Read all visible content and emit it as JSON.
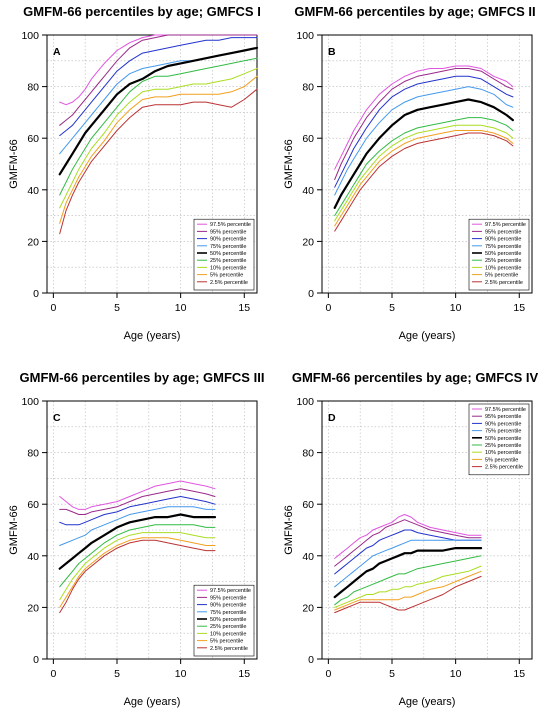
{
  "chart_data": [
    {
      "type": "line",
      "title": "GMFM-66 percentiles by age; GMFCS I",
      "panel": "A",
      "xlabel": "Age (years)",
      "ylabel": "GMFM-66",
      "xlim": [
        -0.5,
        16
      ],
      "ylim": [
        0,
        100
      ],
      "xticks": [
        "0",
        "5",
        "10",
        "15"
      ],
      "yticks": [
        "0",
        "20",
        "40",
        "60",
        "80",
        "100"
      ],
      "grid": true,
      "legend_position": "bottom-right",
      "x": [
        0.5,
        1,
        1.5,
        2,
        2.5,
        3,
        3.5,
        4,
        5,
        6,
        7,
        8,
        9,
        10,
        11,
        12,
        13,
        14,
        15,
        16
      ],
      "series": [
        {
          "name": "97.5% percentile",
          "color": "#e055e0",
          "width": 1,
          "values": [
            74,
            73,
            74,
            76,
            79,
            83,
            86,
            89,
            94,
            97,
            99,
            100,
            100,
            100,
            100,
            100,
            100,
            100,
            100,
            100
          ]
        },
        {
          "name": "95% percentile",
          "color": "#9a2a8a",
          "width": 1,
          "values": [
            65,
            67,
            69,
            72,
            75,
            78,
            81,
            84,
            90,
            95,
            98,
            99,
            100,
            100,
            100,
            100,
            100,
            100,
            100,
            100
          ]
        },
        {
          "name": "90% percentile",
          "color": "#2233cc",
          "width": 1,
          "values": [
            61,
            63,
            65,
            68,
            71,
            74,
            77,
            80,
            86,
            90,
            93,
            94,
            95,
            96,
            97,
            98,
            98,
            99,
            99,
            99
          ]
        },
        {
          "name": "75% percentile",
          "color": "#4499ee",
          "width": 1,
          "values": [
            54,
            57,
            60,
            63,
            66,
            69,
            72,
            75,
            81,
            85,
            87,
            88,
            89,
            90,
            90,
            91,
            92,
            93,
            94,
            95
          ]
        },
        {
          "name": "50% percentile",
          "color": "#000000",
          "width": 2.2,
          "values": [
            46,
            50,
            54,
            58,
            62,
            65,
            68,
            71,
            77,
            81,
            83,
            86,
            88,
            89,
            90,
            91,
            92,
            93,
            94,
            95
          ]
        },
        {
          "name": "25% percentile",
          "color": "#33bb44",
          "width": 1,
          "values": [
            38,
            43,
            48,
            52,
            56,
            60,
            63,
            66,
            72,
            78,
            82,
            84,
            84,
            85,
            86,
            87,
            88,
            89,
            90,
            91
          ]
        },
        {
          "name": "10% percentile",
          "color": "#aadd22",
          "width": 1,
          "values": [
            33,
            38,
            43,
            48,
            52,
            56,
            59,
            62,
            69,
            74,
            78,
            79,
            79,
            80,
            81,
            81,
            82,
            83,
            85,
            87
          ]
        },
        {
          "name": "5% percentile",
          "color": "#f2a020",
          "width": 1,
          "values": [
            27,
            35,
            40,
            45,
            49,
            53,
            56,
            59,
            66,
            71,
            75,
            76,
            76,
            77,
            77,
            77,
            77,
            78,
            80,
            84
          ]
        },
        {
          "name": "2.5% percentile",
          "color": "#bb3333",
          "width": 1,
          "values": [
            23,
            32,
            38,
            43,
            47,
            51,
            54,
            57,
            63,
            68,
            72,
            73,
            73,
            73,
            74,
            74,
            73,
            72,
            75,
            79
          ]
        }
      ]
    },
    {
      "type": "line",
      "title": "GMFM-66 percentiles by age; GMFCS II",
      "panel": "B",
      "xlabel": "Age (years)",
      "ylabel": "GMFM-66",
      "xlim": [
        -0.5,
        16
      ],
      "ylim": [
        0,
        100
      ],
      "xticks": [
        "0",
        "5",
        "10",
        "15"
      ],
      "yticks": [
        "0",
        "20",
        "40",
        "60",
        "80",
        "100"
      ],
      "grid": true,
      "legend_position": "bottom-right",
      "x": [
        0.5,
        1,
        1.5,
        2,
        2.5,
        3,
        4,
        5,
        6,
        7,
        8,
        9,
        10,
        11,
        12,
        13,
        14,
        14.5
      ],
      "series": [
        {
          "name": "97.5% percentile",
          "color": "#e055e0",
          "width": 1,
          "values": [
            48,
            53,
            58,
            63,
            67,
            71,
            77,
            81,
            84,
            86,
            87,
            87,
            88,
            88,
            87,
            84,
            82,
            80
          ]
        },
        {
          "name": "95% percentile",
          "color": "#9a2a8a",
          "width": 1,
          "values": [
            44,
            50,
            55,
            60,
            64,
            68,
            74,
            79,
            82,
            84,
            85,
            86,
            87,
            87,
            86,
            83,
            80,
            79
          ]
        },
        {
          "name": "90% percentile",
          "color": "#2233cc",
          "width": 1,
          "values": [
            41,
            46,
            51,
            56,
            60,
            64,
            71,
            76,
            79,
            81,
            82,
            83,
            84,
            84,
            83,
            80,
            77,
            76
          ]
        },
        {
          "name": "75% percentile",
          "color": "#4499ee",
          "width": 1,
          "values": [
            38,
            43,
            48,
            52,
            56,
            60,
            66,
            71,
            74,
            76,
            77,
            78,
            79,
            80,
            79,
            77,
            73,
            72
          ]
        },
        {
          "name": "50% percentile",
          "color": "#000000",
          "width": 2.2,
          "values": [
            33,
            38,
            42,
            46,
            50,
            54,
            60,
            65,
            69,
            71,
            72,
            73,
            74,
            75,
            74,
            72,
            69,
            67
          ]
        },
        {
          "name": "25% percentile",
          "color": "#33bb44",
          "width": 1,
          "values": [
            30,
            34,
            38,
            42,
            46,
            50,
            55,
            59,
            62,
            64,
            65,
            66,
            67,
            68,
            68,
            67,
            65,
            63
          ]
        },
        {
          "name": "10% percentile",
          "color": "#aadd22",
          "width": 1,
          "values": [
            28,
            32,
            36,
            40,
            44,
            47,
            53,
            57,
            60,
            62,
            63,
            64,
            65,
            65,
            65,
            64,
            62,
            60
          ]
        },
        {
          "name": "5% percentile",
          "color": "#f2a020",
          "width": 1,
          "values": [
            26,
            30,
            34,
            38,
            42,
            45,
            51,
            55,
            58,
            60,
            61,
            62,
            63,
            63,
            63,
            62,
            60,
            58
          ]
        },
        {
          "name": "2.5% percentile",
          "color": "#bb3333",
          "width": 1,
          "values": [
            24,
            28,
            32,
            36,
            40,
            43,
            49,
            53,
            56,
            58,
            59,
            60,
            61,
            62,
            62,
            61,
            59,
            57
          ]
        }
      ]
    },
    {
      "type": "line",
      "title": "GMFM-66 percentiles by age; GMFCS III",
      "panel": "C",
      "xlabel": "Age (years)",
      "ylabel": "GMFM-66",
      "xlim": [
        -0.5,
        16
      ],
      "ylim": [
        0,
        100
      ],
      "xticks": [
        "0",
        "5",
        "10",
        "15"
      ],
      "yticks": [
        "0",
        "20",
        "40",
        "60",
        "80",
        "100"
      ],
      "grid": true,
      "legend_position": "bottom-right",
      "x": [
        0.5,
        1,
        1.5,
        2,
        2.5,
        3,
        4,
        5,
        6,
        7,
        8,
        9,
        10,
        11,
        12,
        12.7
      ],
      "series": [
        {
          "name": "97.5% percentile",
          "color": "#e055e0",
          "width": 1,
          "values": [
            63,
            61,
            59,
            58,
            58,
            59,
            60,
            61,
            63,
            65,
            67,
            68,
            69,
            68,
            67,
            66
          ]
        },
        {
          "name": "95% percentile",
          "color": "#9a2a8a",
          "width": 1,
          "values": [
            58,
            58,
            57,
            56,
            56,
            57,
            58,
            59,
            61,
            63,
            64,
            65,
            66,
            65,
            64,
            63
          ]
        },
        {
          "name": "90% percentile",
          "color": "#2233cc",
          "width": 1,
          "values": [
            53,
            52,
            52,
            52,
            53,
            54,
            56,
            57,
            59,
            60,
            61,
            62,
            63,
            62,
            61,
            60
          ]
        },
        {
          "name": "75% percentile",
          "color": "#4499ee",
          "width": 1,
          "values": [
            44,
            45,
            46,
            47,
            48,
            50,
            52,
            54,
            56,
            57,
            58,
            59,
            59,
            59,
            58,
            58
          ]
        },
        {
          "name": "50% percentile",
          "color": "#000000",
          "width": 2.2,
          "values": [
            35,
            37,
            39,
            41,
            43,
            45,
            48,
            51,
            53,
            54,
            55,
            55,
            56,
            55,
            55,
            55
          ]
        },
        {
          "name": "25% percentile",
          "color": "#33bb44",
          "width": 1,
          "values": [
            28,
            31,
            34,
            37,
            39,
            41,
            45,
            48,
            50,
            51,
            52,
            52,
            52,
            52,
            51,
            51
          ]
        },
        {
          "name": "10% percentile",
          "color": "#aadd22",
          "width": 1,
          "values": [
            23,
            27,
            31,
            34,
            37,
            39,
            43,
            46,
            48,
            49,
            49,
            49,
            49,
            48,
            47,
            47
          ]
        },
        {
          "name": "5% percentile",
          "color": "#f2a020",
          "width": 1,
          "values": [
            20,
            24,
            28,
            32,
            35,
            37,
            41,
            44,
            46,
            47,
            47,
            47,
            46,
            45,
            44,
            44
          ]
        },
        {
          "name": "2.5% percentile",
          "color": "#bb3333",
          "width": 1,
          "values": [
            18,
            22,
            27,
            31,
            34,
            36,
            40,
            43,
            45,
            46,
            46,
            45,
            44,
            43,
            42,
            42
          ]
        }
      ]
    },
    {
      "type": "line",
      "title": "GMFM-66 percentiles by age; GMFCS IV",
      "panel": "D",
      "xlabel": "Age (years)",
      "ylabel": "GMFM-66",
      "xlim": [
        -0.5,
        16
      ],
      "ylim": [
        0,
        100
      ],
      "xticks": [
        "0",
        "5",
        "10",
        "15"
      ],
      "yticks": [
        "0",
        "20",
        "40",
        "60",
        "80",
        "100"
      ],
      "grid": true,
      "legend_position": "top-right",
      "x": [
        0.5,
        1,
        1.5,
        2,
        2.5,
        3,
        3.5,
        4,
        4.5,
        5,
        5.5,
        6,
        6.5,
        7,
        8,
        9,
        10,
        11,
        12
      ],
      "series": [
        {
          "name": "97.5% percentile",
          "color": "#e055e0",
          "width": 1,
          "values": [
            39,
            41,
            43,
            45,
            47,
            48,
            50,
            51,
            52,
            53,
            55,
            56,
            55,
            53,
            51,
            50,
            49,
            48,
            48
          ]
        },
        {
          "name": "95% percentile",
          "color": "#9a2a8a",
          "width": 1,
          "values": [
            36,
            38,
            40,
            42,
            44,
            46,
            48,
            49,
            51,
            52,
            53,
            54,
            53,
            52,
            50,
            49,
            48,
            47,
            47
          ]
        },
        {
          "name": "90% percentile",
          "color": "#2233cc",
          "width": 1,
          "values": [
            33,
            35,
            37,
            39,
            41,
            43,
            44,
            46,
            47,
            48,
            49,
            50,
            50,
            49,
            48,
            47,
            46,
            46,
            46
          ]
        },
        {
          "name": "75% percentile",
          "color": "#4499ee",
          "width": 1,
          "values": [
            28,
            30,
            32,
            34,
            36,
            38,
            40,
            41,
            42,
            43,
            44,
            45,
            46,
            46,
            46,
            46,
            46,
            46,
            46
          ]
        },
        {
          "name": "50% percentile",
          "color": "#000000",
          "width": 2.2,
          "values": [
            24,
            26,
            28,
            30,
            32,
            34,
            35,
            37,
            38,
            39,
            40,
            41,
            41,
            42,
            42,
            42,
            43,
            43,
            43
          ]
        },
        {
          "name": "25% percentile",
          "color": "#33bb44",
          "width": 1,
          "values": [
            21,
            23,
            24,
            26,
            27,
            28,
            29,
            30,
            31,
            32,
            33,
            33,
            34,
            35,
            36,
            37,
            38,
            39,
            40
          ]
        },
        {
          "name": "10% percentile",
          "color": "#aadd22",
          "width": 1,
          "values": [
            20,
            21,
            22,
            23,
            24,
            25,
            25,
            26,
            26,
            27,
            27,
            28,
            28,
            29,
            30,
            32,
            33,
            34,
            36
          ]
        },
        {
          "name": "5% percentile",
          "color": "#f2a020",
          "width": 1,
          "values": [
            19,
            20,
            21,
            22,
            23,
            23,
            23,
            23,
            23,
            23,
            23,
            24,
            24,
            25,
            27,
            28,
            30,
            32,
            34
          ]
        },
        {
          "name": "2.5% percentile",
          "color": "#bb3333",
          "width": 1,
          "values": [
            18,
            19,
            20,
            21,
            22,
            22,
            22,
            22,
            21,
            20,
            19,
            19,
            20,
            21,
            23,
            25,
            28,
            30,
            32
          ]
        }
      ]
    }
  ]
}
